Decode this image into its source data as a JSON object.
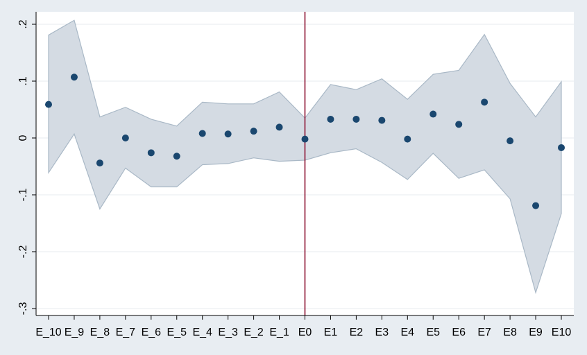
{
  "chart_data": {
    "type": "scatter",
    "title": "",
    "xlabel": "",
    "ylabel": "",
    "categories": [
      "E_10",
      "E_9",
      "E_8",
      "E_7",
      "E_6",
      "E_5",
      "E_4",
      "E_3",
      "E_2",
      "E_1",
      "E0",
      "E1",
      "E2",
      "E3",
      "E4",
      "E5",
      "E6",
      "E7",
      "E8",
      "E9",
      "E10"
    ],
    "series": [
      {
        "values": [
          0.059,
          0.107,
          -0.044,
          0.0,
          -0.026,
          -0.032,
          0.008,
          0.007,
          0.012,
          0.019,
          -0.002,
          0.033,
          0.033,
          0.031,
          -0.002,
          0.042,
          0.024,
          0.063,
          -0.005,
          -0.119,
          -0.017
        ]
      }
    ],
    "ci_upper": [
      0.181,
      0.207,
      0.037,
      0.054,
      0.033,
      0.021,
      0.063,
      0.06,
      0.06,
      0.081,
      0.035,
      0.094,
      0.085,
      0.104,
      0.068,
      0.112,
      0.119,
      0.182,
      0.096,
      0.037,
      0.099
    ],
    "ci_lower": [
      -0.061,
      0.007,
      -0.125,
      -0.053,
      -0.086,
      -0.086,
      -0.047,
      -0.045,
      -0.035,
      -0.041,
      -0.039,
      -0.026,
      -0.019,
      -0.043,
      -0.073,
      -0.027,
      -0.071,
      -0.056,
      -0.107,
      -0.272,
      -0.133
    ],
    "y_ticks": [
      {
        "value": -0.3,
        "label": "-.3"
      },
      {
        "value": -0.2,
        "label": "-.2"
      },
      {
        "value": -0.1,
        "label": "-.1"
      },
      {
        "value": 0,
        "label": "0"
      },
      {
        "value": 0.1,
        "label": ".1"
      },
      {
        "value": 0.2,
        "label": ".2"
      }
    ],
    "ylim": [
      -0.31,
      0.22
    ],
    "reference_line_category": "E0",
    "grid": true,
    "colors": {
      "background": "#e8edf2",
      "plot_background": "#ffffff",
      "band_fill": "#d4dbe3",
      "band_stroke": "#a9b8c6",
      "marker": "#1a476f",
      "reference_line": "#8b0f2f",
      "grid": "#e7ebef",
      "axis": "#000000"
    }
  }
}
